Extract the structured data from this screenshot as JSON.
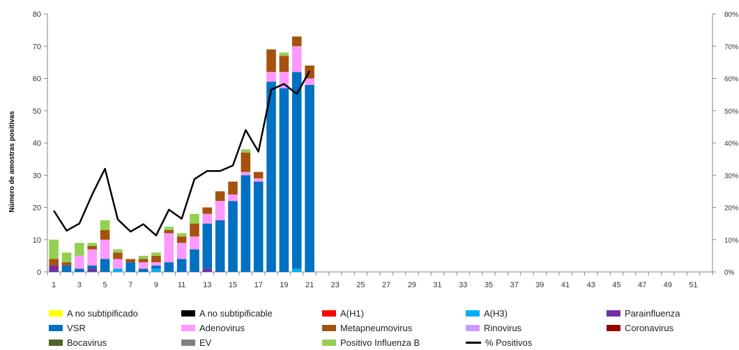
{
  "chart_data": {
    "type": "bar",
    "stacked": true,
    "title": "",
    "ylabel": "Número de amostras positivas",
    "xlabel": "",
    "ylim": [
      0,
      80
    ],
    "y_ticks": [
      "0",
      "10",
      "20",
      "30",
      "40",
      "50",
      "60",
      "70",
      "80"
    ],
    "y2lim": [
      0,
      80
    ],
    "y2_ticks": [
      "0%",
      "10%",
      "20%",
      "30%",
      "40%",
      "50%",
      "60%",
      "70%",
      "80%"
    ],
    "weeks": 52,
    "x_tick_labels": [
      "1",
      "3",
      "5",
      "7",
      "9",
      "11",
      "13",
      "15",
      "17",
      "19",
      "21",
      "23",
      "25",
      "27",
      "29",
      "31",
      "33",
      "35",
      "37",
      "39",
      "41",
      "43",
      "45",
      "47",
      "49",
      "51"
    ],
    "categories": [
      1,
      2,
      3,
      4,
      5,
      6,
      7,
      8,
      9,
      10,
      11,
      12,
      13,
      14,
      15,
      16,
      17,
      18,
      19,
      20,
      21
    ],
    "series": [
      {
        "name": "A no subtipificado",
        "color": "#ffff00",
        "values": [
          0,
          0,
          0,
          0,
          0,
          0,
          0,
          0,
          0,
          0,
          0,
          0,
          0,
          0,
          0,
          0,
          0,
          0,
          0,
          0,
          0
        ]
      },
      {
        "name": "A no subtipificable",
        "color": "#000000",
        "values": [
          0,
          0,
          0,
          0,
          0,
          0,
          0,
          0,
          0,
          0,
          0,
          0,
          0,
          0,
          0,
          0,
          0,
          0,
          0,
          0,
          0
        ]
      },
      {
        "name": "A(H1)",
        "color": "#ff0000",
        "values": [
          0,
          0,
          0,
          0,
          0,
          0,
          0,
          0,
          0,
          0,
          0,
          0,
          0,
          0,
          0,
          0,
          0,
          0,
          0,
          0,
          0
        ]
      },
      {
        "name": "A(H3)",
        "color": "#00b0f0",
        "values": [
          0,
          0,
          0,
          0,
          0,
          1,
          0,
          0,
          1,
          0,
          0,
          0,
          0,
          0,
          0,
          0,
          0,
          0,
          0,
          1,
          0
        ]
      },
      {
        "name": "Parainfluenza",
        "color": "#7030a0",
        "values": [
          2,
          0,
          0,
          1,
          0,
          0,
          0,
          0,
          0,
          0,
          0,
          0,
          1,
          0,
          0,
          0,
          0,
          0,
          0,
          0,
          0
        ]
      },
      {
        "name": "VSR",
        "color": "#0070c0",
        "values": [
          0,
          2,
          1,
          1,
          4,
          0,
          3,
          1,
          1,
          3,
          4,
          7,
          14,
          16,
          22,
          30,
          28,
          59,
          57,
          61,
          58
        ]
      },
      {
        "name": "Adenovirus",
        "color": "#ff99ff",
        "values": [
          0,
          0,
          4,
          5,
          6,
          3,
          0,
          2,
          1,
          9,
          5,
          4,
          3,
          6,
          2,
          1,
          1,
          3,
          5,
          8,
          2
        ]
      },
      {
        "name": "Metapneumovirus",
        "color": "#a5520e",
        "values": [
          2,
          1,
          0,
          1,
          3,
          2,
          1,
          1,
          2,
          1,
          2,
          4,
          2,
          3,
          4,
          6,
          2,
          7,
          5,
          3,
          4
        ]
      },
      {
        "name": "Rinovirus",
        "color": "#cc99ff",
        "values": [
          0,
          0,
          0,
          0,
          0,
          0,
          0,
          0,
          0,
          0,
          0,
          0,
          0,
          0,
          0,
          0,
          0,
          0,
          0,
          0,
          0
        ]
      },
      {
        "name": "Coronavirus",
        "color": "#990000",
        "values": [
          0,
          0,
          0,
          0,
          0,
          0,
          0,
          0,
          0,
          0,
          0,
          0,
          0,
          0,
          0,
          0,
          0,
          0,
          0,
          0,
          0
        ]
      },
      {
        "name": "Bocavirus",
        "color": "#4f6228",
        "values": [
          0,
          0,
          0,
          0,
          0,
          0,
          0,
          0,
          0,
          0,
          0,
          0,
          0,
          0,
          0,
          0,
          0,
          0,
          0,
          0,
          0
        ]
      },
      {
        "name": "EV",
        "color": "#808080",
        "values": [
          0,
          0,
          0,
          0,
          0,
          0,
          0,
          0,
          0,
          0,
          0,
          0,
          0,
          0,
          0,
          0,
          0,
          0,
          0,
          0,
          0
        ]
      },
      {
        "name": "Positivo Influenza  B",
        "color": "#92d050",
        "values": [
          6,
          3,
          4,
          1,
          3,
          1,
          0,
          1,
          1,
          1,
          1,
          3,
          0,
          0,
          0,
          1,
          0,
          0,
          1,
          0,
          0
        ]
      }
    ],
    "line_series": {
      "name": "% Positivos",
      "color": "#000000",
      "axis": "secondary",
      "values": [
        19,
        12.8,
        15,
        24,
        32,
        16.3,
        12.5,
        14.8,
        11.3,
        19.3,
        16.5,
        28.8,
        31.3,
        31.3,
        33,
        44,
        37.3,
        56.5,
        58.3,
        55.2,
        62.3
      ]
    },
    "legend_position": "bottom",
    "grid": false
  }
}
